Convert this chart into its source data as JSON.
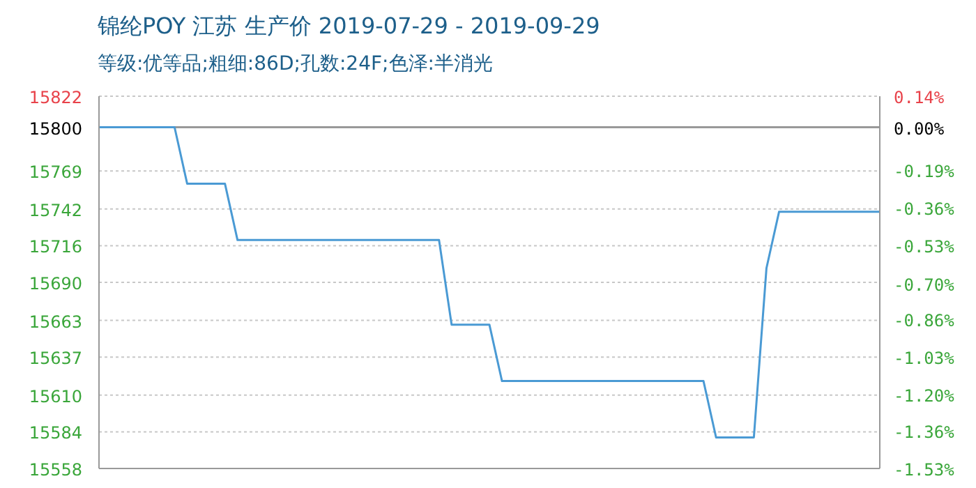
{
  "chart_data": {
    "type": "line",
    "title": "锦纶POY 江苏 生产价 2019-07-29 - 2019-09-29",
    "subtitle": "等级:优等品;粗细:86D;孔数:24F;色泽:半消光",
    "categories": [
      null,
      null,
      null,
      null,
      null,
      null,
      null,
      null,
      null,
      null,
      null,
      null,
      null,
      null,
      null,
      null,
      null,
      null,
      null,
      null,
      null,
      null,
      null,
      null,
      null,
      null,
      null,
      null,
      null,
      null,
      null,
      null,
      null,
      null,
      null,
      null,
      null,
      null,
      null,
      null,
      null,
      null,
      null,
      null,
      null,
      null,
      null,
      null,
      null,
      null,
      null,
      null,
      null,
      null,
      null,
      null,
      null,
      null,
      null,
      null,
      null,
      null,
      null
    ],
    "series": [
      {
        "color": "#4a9ad4",
        "values": [
          15800,
          15800,
          15800,
          15800,
          15800,
          15800,
          15800,
          15760,
          15760,
          15760,
          15760,
          15720,
          15720,
          15720,
          15720,
          15720,
          15720,
          15720,
          15720,
          15720,
          15720,
          15720,
          15720,
          15720,
          15720,
          15720,
          15720,
          15720,
          15660,
          15660,
          15660,
          15660,
          15620,
          15620,
          15620,
          15620,
          15620,
          15620,
          15620,
          15620,
          15620,
          15620,
          15620,
          15620,
          15620,
          15620,
          15620,
          15620,
          15620,
          15580,
          15580,
          15580,
          15580,
          15700,
          15740,
          15740,
          15740,
          15740,
          15740,
          15740,
          15740,
          15740,
          15740
        ]
      }
    ],
    "ylim": [
      15558,
      15822
    ],
    "yticks": [
      15558,
      15584,
      15610,
      15637,
      15663,
      15690,
      15716,
      15742,
      15769,
      15800,
      15822
    ],
    "y2lim": [
      -1.53,
      0.14
    ],
    "y2ticks": [
      {
        "value": -1.53,
        "label": "-1.53%"
      },
      {
        "value": -1.36,
        "label": "-1.36%"
      },
      {
        "value": -1.2,
        "label": "-1.20%"
      },
      {
        "value": -1.03,
        "label": "-1.03%"
      },
      {
        "value": -0.86,
        "label": "-0.86%"
      },
      {
        "value": -0.7,
        "label": "-0.70%"
      },
      {
        "value": -0.53,
        "label": "-0.53%"
      },
      {
        "value": -0.36,
        "label": "-0.36%"
      },
      {
        "value": -0.19,
        "label": "-0.19%"
      },
      {
        "value": 0,
        "label": "0.00%"
      },
      {
        "value": 0.14,
        "label": "0.14%"
      }
    ],
    "ref_lines": [
      {
        "axis": "y",
        "value": 15800,
        "color": "#999999",
        "line_style": "solid"
      }
    ],
    "grid": true,
    "marker": "none",
    "line_style": "solid"
  }
}
